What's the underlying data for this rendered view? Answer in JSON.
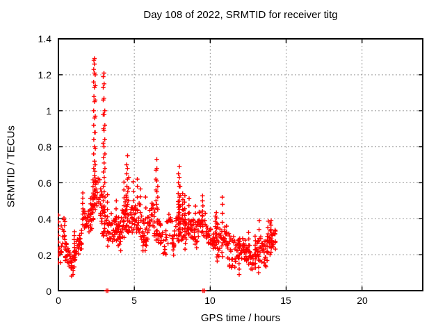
{
  "title": "Day 108 of 2022, SRMTID for receiver titg",
  "chart_data": {
    "type": "scatter",
    "title": "Day 108 of 2022, SRMTID for receiver titg",
    "xlabel": "GPS time / hours",
    "ylabel": "SRMTID / TECUs",
    "xlim": [
      0,
      24
    ],
    "ylim": [
      0,
      1.4
    ],
    "xticks": [
      0,
      5,
      10,
      15,
      20
    ],
    "yticks": [
      0,
      0.2,
      0.4,
      0.6,
      0.8,
      1,
      1.2,
      1.4
    ],
    "xtick_labels": [
      "0",
      "5",
      "10",
      "15",
      "20"
    ],
    "ytick_labels": [
      "0",
      "0.2",
      "0.4",
      "0.6",
      "0.8",
      "1",
      "1.2",
      "1.4"
    ],
    "grid": true,
    "legend": "none",
    "marker": "plus",
    "marker_color": "#ff0000",
    "grid_color": "#9a9a9a",
    "border_color": "#000000",
    "x_data_range": [
      0,
      14.3
    ],
    "peak_value": 1.29,
    "peak_time": 2.4,
    "bands": [
      [
        0.0,
        0.45,
        0.26,
        0.24,
        0.12,
        0.04,
        4
      ],
      [
        0.45,
        1.05,
        0.2,
        0.22,
        0.08,
        0.03,
        4
      ],
      [
        1.05,
        1.6,
        0.26,
        0.3,
        0.07,
        0.03,
        4
      ],
      [
        1.6,
        2.28,
        0.41,
        0.46,
        0.08,
        0.03,
        5
      ],
      [
        2.28,
        2.55,
        0.46,
        0.5,
        0.1,
        0.03,
        3
      ],
      [
        2.55,
        2.88,
        0.5,
        0.46,
        0.12,
        0.03,
        3
      ],
      [
        2.88,
        3.55,
        0.42,
        0.36,
        0.13,
        0.04,
        4
      ],
      [
        3.55,
        4.15,
        0.37,
        0.34,
        0.1,
        0.03,
        4
      ],
      [
        4.15,
        4.55,
        0.38,
        0.4,
        0.14,
        0.04,
        4
      ],
      [
        4.55,
        5.65,
        0.38,
        0.34,
        0.12,
        0.03,
        4
      ],
      [
        5.65,
        6.35,
        0.32,
        0.33,
        0.11,
        0.03,
        4
      ],
      [
        6.35,
        6.6,
        0.36,
        0.35,
        0.12,
        0.03,
        3
      ],
      [
        6.6,
        7.65,
        0.35,
        0.33,
        0.11,
        0.03,
        4
      ],
      [
        7.65,
        8.35,
        0.34,
        0.31,
        0.1,
        0.03,
        4
      ],
      [
        8.35,
        9.15,
        0.3,
        0.33,
        0.09,
        0.03,
        4
      ],
      [
        9.15,
        9.75,
        0.36,
        0.32,
        0.09,
        0.03,
        4
      ],
      [
        9.75,
        10.45,
        0.27,
        0.28,
        0.08,
        0.03,
        4
      ],
      [
        10.45,
        11.15,
        0.3,
        0.28,
        0.12,
        0.03,
        4
      ],
      [
        11.15,
        11.75,
        0.25,
        0.24,
        0.11,
        0.03,
        4
      ],
      [
        11.75,
        12.45,
        0.23,
        0.22,
        0.08,
        0.03,
        4
      ],
      [
        12.45,
        13.15,
        0.21,
        0.19,
        0.08,
        0.03,
        4
      ],
      [
        13.15,
        13.75,
        0.18,
        0.21,
        0.09,
        0.03,
        4
      ],
      [
        13.75,
        14.3,
        0.26,
        0.28,
        0.08,
        0.03,
        5
      ]
    ],
    "feature_columns": [
      {
        "x": 2.33,
        "ys": [
          0.52,
          0.6,
          0.68,
          0.76,
          0.84,
          0.92,
          1.0,
          1.08,
          1.16,
          1.23,
          1.28
        ]
      },
      {
        "x": 2.38,
        "ys": [
          0.48,
          0.56,
          0.64,
          0.72,
          0.8,
          0.88,
          0.96,
          1.05,
          1.13,
          1.21,
          1.26,
          1.29
        ]
      },
      {
        "x": 2.43,
        "ys": [
          0.45,
          0.53,
          0.61,
          0.7,
          0.79,
          0.88,
          0.97,
          1.06,
          1.14,
          1.2
        ]
      },
      {
        "x": 2.96,
        "ys": [
          0.5,
          0.58,
          0.66,
          0.74,
          0.82,
          0.9,
          0.98,
          1.06,
          1.13,
          1.19
        ]
      },
      {
        "x": 3.01,
        "ys": [
          0.47,
          0.55,
          0.63,
          0.71,
          0.8,
          0.89,
          0.98,
          1.07,
          1.15,
          1.21
        ]
      },
      {
        "x": 3.06,
        "ys": [
          0.45,
          0.52,
          0.6,
          0.68,
          0.76,
          0.84,
          0.92,
          1.0
        ]
      },
      {
        "x": 4.5,
        "ys": [
          0.45,
          0.52,
          0.58,
          0.65,
          0.7
        ]
      },
      {
        "x": 4.56,
        "ys": [
          0.48,
          0.55,
          0.62,
          0.68,
          0.75
        ]
      },
      {
        "x": 4.62,
        "ys": [
          0.42,
          0.5,
          0.57,
          0.63
        ]
      },
      {
        "x": 5.2,
        "ys": [
          0.45,
          0.52,
          0.58,
          0.62
        ]
      },
      {
        "x": 6.42,
        "ys": [
          0.5,
          0.56,
          0.62,
          0.67
        ]
      },
      {
        "x": 6.48,
        "ys": [
          0.48,
          0.55,
          0.61,
          0.68,
          0.73
        ]
      },
      {
        "x": 6.54,
        "ys": [
          0.45,
          0.52,
          0.58
        ]
      },
      {
        "x": 7.9,
        "ys": [
          0.42,
          0.48,
          0.54,
          0.6,
          0.65
        ]
      },
      {
        "x": 7.96,
        "ys": [
          0.45,
          0.52,
          0.58,
          0.63,
          0.69
        ]
      },
      {
        "x": 8.02,
        "ys": [
          0.4,
          0.47,
          0.53,
          0.58
        ]
      },
      {
        "x": 8.18,
        "ys": [
          0.42,
          0.48,
          0.54
        ]
      },
      {
        "x": 9.02,
        "ys": [
          0.38,
          0.43,
          0.47
        ]
      },
      {
        "x": 10.8,
        "ys": [
          0.38,
          0.43,
          0.48,
          0.52
        ]
      },
      {
        "x": 11.9,
        "ys": [
          0.09,
          0.12,
          0.15,
          0.18
        ]
      },
      {
        "x": 13.18,
        "ys": [
          0.1,
          0.13,
          0.17
        ]
      }
    ],
    "baseline_points": [
      [
        3.15,
        0.0
      ],
      [
        3.25,
        0.0
      ],
      [
        9.52,
        0.0
      ],
      [
        9.62,
        0.0
      ]
    ]
  }
}
